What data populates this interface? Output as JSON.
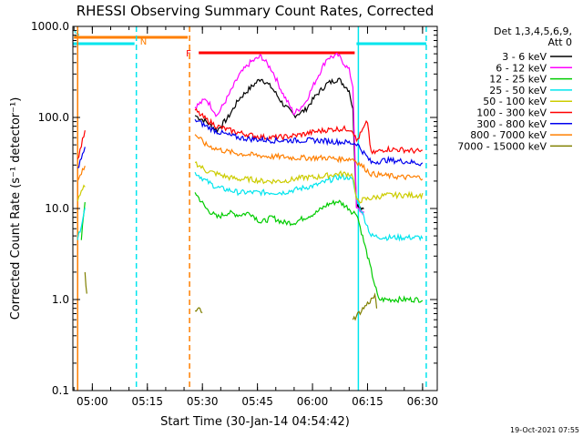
{
  "chart_data": {
    "type": "line",
    "title": "RHESSI Observing Summary Count Rates, Corrected",
    "xlabel": "Start Time (30-Jan-14 04:54:42)",
    "ylabel": "Corrected Count Rate (s⁻¹ detector⁻¹)",
    "yscale": "log",
    "ylim": [
      0.1,
      1000
    ],
    "yticks": [
      "0.1",
      "1.0",
      "10.0",
      "100.0",
      "1000.0"
    ],
    "xticks": [
      "05:00",
      "05:15",
      "05:30",
      "05:45",
      "06:00",
      "06:15",
      "06:30"
    ],
    "xlim": [
      "04:54:42",
      "06:34:00"
    ],
    "legend_title": "Det 1,3,4,5,6,9,",
    "legend_subtitle": "Att 0",
    "legend_position": "right",
    "timestamp": "19-Oct-2021 07:55",
    "flags": [
      {
        "label": "S",
        "color": "#00e5ee",
        "start": "04:54:42",
        "end": "05:11:30"
      },
      {
        "label": "N",
        "color": "#ff7f00",
        "start": "04:55:00",
        "end": "05:26:00"
      },
      {
        "label": "F",
        "color": "#ff0000",
        "start": "05:29:00",
        "end": "06:11:30"
      },
      {
        "label": "",
        "color": "#00e5ee",
        "start": "06:12:00",
        "end": "06:31:00"
      }
    ],
    "vlines": [
      {
        "time": "04:56:00",
        "color": "#ff7f00",
        "dash": false
      },
      {
        "time": "05:12:00",
        "color": "#00e5ee",
        "dash": true
      },
      {
        "time": "05:26:30",
        "color": "#ff7f00",
        "dash": true
      },
      {
        "time": "06:12:30",
        "color": "#00e5ee",
        "dash": false
      },
      {
        "time": "06:31:00",
        "color": "#00e5ee",
        "dash": true
      }
    ],
    "series": [
      {
        "name": "3 - 6 keV",
        "color": "#000000",
        "points": [
          [
            "05:28",
            105
          ],
          [
            "05:31",
            90
          ],
          [
            "05:34",
            72
          ],
          [
            "05:37",
            100
          ],
          [
            "05:40",
            160
          ],
          [
            "05:43",
            210
          ],
          [
            "05:46",
            270
          ],
          [
            "05:49",
            210
          ],
          [
            "05:52",
            140
          ],
          [
            "05:55",
            105
          ],
          [
            "05:58",
            120
          ],
          [
            "06:01",
            175
          ],
          [
            "06:04",
            235
          ],
          [
            "06:07",
            265
          ],
          [
            "06:10",
            200
          ],
          [
            "06:11",
            120
          ],
          [
            "06:12",
            11
          ],
          [
            "06:14",
            10
          ]
        ]
      },
      {
        "name": "6 - 12 keV",
        "color": "#ff00ff",
        "points": [
          [
            "05:28",
            130
          ],
          [
            "05:31",
            160
          ],
          [
            "05:34",
            105
          ],
          [
            "05:37",
            170
          ],
          [
            "05:40",
            290
          ],
          [
            "05:43",
            400
          ],
          [
            "05:46",
            470
          ],
          [
            "05:49",
            330
          ],
          [
            "05:52",
            180
          ],
          [
            "05:55",
            110
          ],
          [
            "05:58",
            145
          ],
          [
            "06:01",
            260
          ],
          [
            "06:04",
            450
          ],
          [
            "06:07",
            480
          ],
          [
            "06:10",
            330
          ],
          [
            "06:11",
            220
          ],
          [
            "06:12",
            10
          ],
          [
            "06:14",
            9
          ]
        ]
      },
      {
        "name": "12 - 25 keV",
        "color": "#00cc00",
        "points": [
          [
            "04:57",
            4.5
          ],
          [
            "04:58",
            12
          ],
          [
            "05:28",
            15
          ],
          [
            "05:31",
            10
          ],
          [
            "05:34",
            8
          ],
          [
            "05:37",
            9
          ],
          [
            "05:40",
            8.5
          ],
          [
            "05:43",
            9
          ],
          [
            "05:46",
            7
          ],
          [
            "05:49",
            8
          ],
          [
            "05:52",
            7
          ],
          [
            "05:55",
            7
          ],
          [
            "05:58",
            8
          ],
          [
            "06:01",
            9
          ],
          [
            "06:04",
            11
          ],
          [
            "06:07",
            12
          ],
          [
            "06:10",
            10
          ],
          [
            "06:11",
            9
          ],
          [
            "06:12",
            9
          ],
          [
            "06:18",
            1.0
          ],
          [
            "06:21",
            1.0
          ],
          [
            "06:30",
            1.0
          ]
        ]
      },
      {
        "name": "25 - 50 keV",
        "color": "#00e5ee",
        "points": [
          [
            "04:56",
            4.5
          ],
          [
            "04:58",
            10
          ],
          [
            "05:28",
            25
          ],
          [
            "05:31",
            20
          ],
          [
            "05:34",
            17
          ],
          [
            "05:37",
            16
          ],
          [
            "05:40",
            15
          ],
          [
            "05:43",
            15
          ],
          [
            "05:46",
            15
          ],
          [
            "05:49",
            15
          ],
          [
            "05:52",
            15
          ],
          [
            "05:55",
            16
          ],
          [
            "05:58",
            17
          ],
          [
            "06:01",
            18
          ],
          [
            "06:04",
            20
          ],
          [
            "06:07",
            22
          ],
          [
            "06:10",
            22
          ],
          [
            "06:11",
            20
          ],
          [
            "06:12",
            13
          ],
          [
            "06:16",
            5
          ],
          [
            "06:20",
            4.8
          ],
          [
            "06:25",
            4.8
          ],
          [
            "06:30",
            4.8
          ]
        ]
      },
      {
        "name": "50 - 100 keV",
        "color": "#cccc00",
        "points": [
          [
            "04:56",
            12
          ],
          [
            "04:58",
            18
          ],
          [
            "05:28",
            32
          ],
          [
            "05:31",
            26
          ],
          [
            "05:34",
            24
          ],
          [
            "05:37",
            22
          ],
          [
            "05:40",
            21
          ],
          [
            "05:43",
            21
          ],
          [
            "05:46",
            20
          ],
          [
            "05:49",
            20
          ],
          [
            "05:52",
            20
          ],
          [
            "05:55",
            21
          ],
          [
            "05:58",
            22
          ],
          [
            "06:01",
            22
          ],
          [
            "06:04",
            23
          ],
          [
            "06:07",
            24
          ],
          [
            "06:10",
            24
          ],
          [
            "06:11",
            23
          ],
          [
            "06:12",
            12
          ],
          [
            "06:16",
            13
          ],
          [
            "06:20",
            14
          ],
          [
            "06:25",
            14
          ],
          [
            "06:30",
            14
          ]
        ]
      },
      {
        "name": "100 - 300 keV",
        "color": "#ff0000",
        "points": [
          [
            "04:56",
            35
          ],
          [
            "04:58",
            70
          ],
          [
            "05:28",
            120
          ],
          [
            "05:31",
            95
          ],
          [
            "05:34",
            80
          ],
          [
            "05:37",
            73
          ],
          [
            "05:40",
            68
          ],
          [
            "05:43",
            64
          ],
          [
            "05:46",
            61
          ],
          [
            "05:49",
            60
          ],
          [
            "05:52",
            61
          ],
          [
            "05:55",
            63
          ],
          [
            "05:58",
            66
          ],
          [
            "06:01",
            70
          ],
          [
            "06:04",
            73
          ],
          [
            "06:07",
            75
          ],
          [
            "06:10",
            75
          ],
          [
            "06:11",
            72
          ],
          [
            "06:12",
            55
          ],
          [
            "06:15",
            90
          ],
          [
            "06:16",
            40
          ],
          [
            "06:20",
            45
          ],
          [
            "06:25",
            44
          ],
          [
            "06:30",
            42
          ]
        ]
      },
      {
        "name": "300 - 800 keV",
        "color": "#0000ee",
        "points": [
          [
            "04:56",
            28
          ],
          [
            "04:58",
            45
          ],
          [
            "05:28",
            95
          ],
          [
            "05:31",
            80
          ],
          [
            "05:34",
            70
          ],
          [
            "05:37",
            64
          ],
          [
            "05:40",
            60
          ],
          [
            "05:43",
            58
          ],
          [
            "05:46",
            57
          ],
          [
            "05:49",
            56
          ],
          [
            "05:52",
            56
          ],
          [
            "05:55",
            56
          ],
          [
            "05:58",
            56
          ],
          [
            "06:01",
            56
          ],
          [
            "06:04",
            55
          ],
          [
            "06:07",
            54
          ],
          [
            "06:10",
            53
          ],
          [
            "06:11",
            52
          ],
          [
            "06:12",
            52
          ],
          [
            "06:16",
            32
          ],
          [
            "06:20",
            34
          ],
          [
            "06:25",
            33
          ],
          [
            "06:30",
            31
          ]
        ]
      },
      {
        "name": "800 - 7000 keV",
        "color": "#ff7f00",
        "points": [
          [
            "04:56",
            20
          ],
          [
            "04:58",
            30
          ],
          [
            "05:28",
            65
          ],
          [
            "05:31",
            50
          ],
          [
            "05:34",
            45
          ],
          [
            "05:37",
            42
          ],
          [
            "05:40",
            40
          ],
          [
            "05:43",
            39
          ],
          [
            "05:46",
            38
          ],
          [
            "05:49",
            37
          ],
          [
            "05:52",
            37
          ],
          [
            "05:55",
            36
          ],
          [
            "05:58",
            36
          ],
          [
            "06:01",
            36
          ],
          [
            "06:04",
            36
          ],
          [
            "06:07",
            35
          ],
          [
            "06:10",
            35
          ],
          [
            "06:11",
            35
          ],
          [
            "06:12",
            33
          ],
          [
            "06:16",
            24
          ],
          [
            "06:20",
            23
          ],
          [
            "06:25",
            22
          ],
          [
            "06:30",
            22
          ]
        ]
      },
      {
        "name": "7000 - 15000 keV",
        "color": "#808000",
        "points": [
          [
            "04:58",
            2.0
          ],
          [
            "04:58:30",
            1.1
          ],
          [
            "05:28",
            0.75
          ],
          [
            "05:29",
            0.78
          ],
          [
            "05:30",
            0.75
          ],
          [
            "06:11",
            0.6
          ],
          [
            "06:17",
            1.1
          ],
          [
            "06:17:30",
            0.8
          ]
        ]
      }
    ]
  }
}
